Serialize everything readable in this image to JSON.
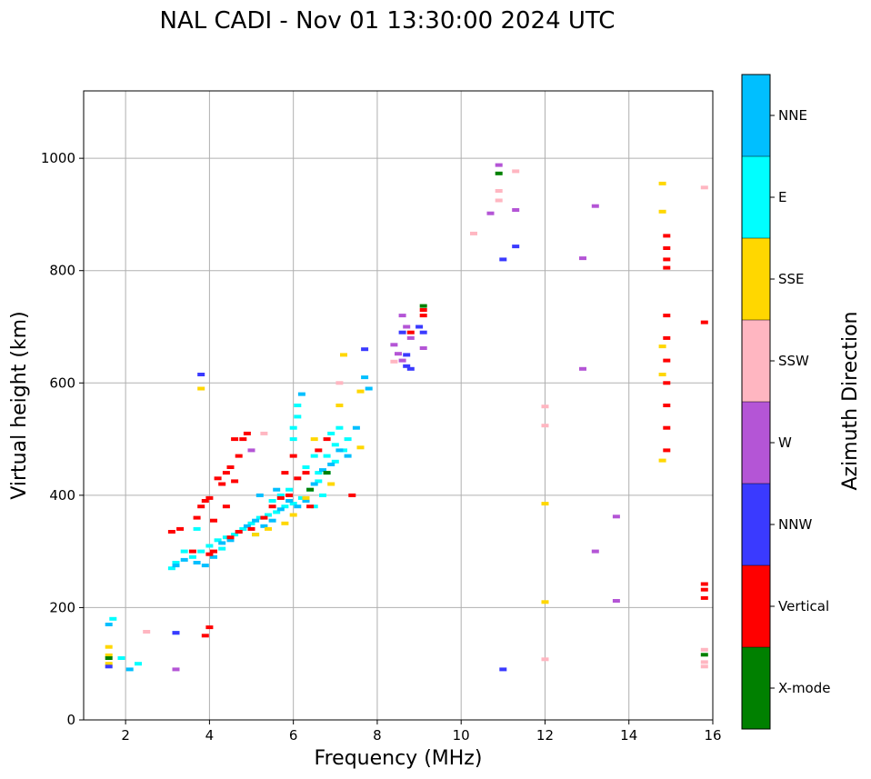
{
  "chart_data": {
    "type": "scatter",
    "title": "NAL CADI - Nov 01 13:30:00 2024 UTC",
    "xlabel": "Frequency (MHz)",
    "ylabel": "Virtual height (km)",
    "xlim": [
      1,
      16
    ],
    "ylim": [
      0,
      1120
    ],
    "xticks": [
      2,
      4,
      6,
      8,
      10,
      12,
      14,
      16
    ],
    "yticks": [
      0,
      200,
      400,
      600,
      800,
      1000
    ],
    "grid": true,
    "colorbar": {
      "title": "Azimuth Direction",
      "categories": [
        {
          "name": "X-mode",
          "color": "#008000"
        },
        {
          "name": "Vertical",
          "color": "#ff0000"
        },
        {
          "name": "NNW",
          "color": "#3a3aff"
        },
        {
          "name": "W",
          "color": "#b455d6"
        },
        {
          "name": "SSW",
          "color": "#ffb6c1"
        },
        {
          "name": "SSE",
          "color": "#ffd700"
        },
        {
          "name": "E",
          "color": "#00ffff"
        },
        {
          "name": "NNE",
          "color": "#00bfff"
        }
      ]
    },
    "series": [
      {
        "name": "E",
        "points": [
          [
            3.1,
            270
          ],
          [
            3.2,
            280
          ],
          [
            3.4,
            300
          ],
          [
            3.6,
            290
          ],
          [
            3.8,
            300
          ],
          [
            4.0,
            310
          ],
          [
            4.2,
            320
          ],
          [
            4.4,
            325
          ],
          [
            4.6,
            330
          ],
          [
            4.8,
            340
          ],
          [
            5.0,
            350
          ],
          [
            5.2,
            360
          ],
          [
            5.4,
            365
          ],
          [
            5.6,
            370
          ],
          [
            5.8,
            380
          ],
          [
            6.0,
            385
          ],
          [
            6.2,
            395
          ],
          [
            6.4,
            410
          ],
          [
            6.6,
            425
          ],
          [
            6.8,
            440
          ],
          [
            7.0,
            460
          ],
          [
            7.2,
            480
          ],
          [
            6.0,
            500
          ],
          [
            6.0,
            520
          ],
          [
            6.1,
            540
          ],
          [
            6.1,
            560
          ],
          [
            6.6,
            440
          ],
          [
            6.8,
            470
          ],
          [
            7.0,
            490
          ],
          [
            5.5,
            390
          ],
          [
            5.7,
            400
          ],
          [
            6.3,
            450
          ],
          [
            6.5,
            470
          ],
          [
            6.9,
            510
          ],
          [
            7.1,
            520
          ],
          [
            1.7,
            180
          ],
          [
            1.9,
            110
          ],
          [
            2.3,
            100
          ],
          [
            3.7,
            340
          ],
          [
            4.3,
            305
          ],
          [
            5.1,
            330
          ],
          [
            5.9,
            410
          ],
          [
            6.5,
            380
          ],
          [
            6.7,
            400
          ],
          [
            7.3,
            500
          ]
        ]
      },
      {
        "name": "NNE",
        "points": [
          [
            3.2,
            275
          ],
          [
            3.4,
            285
          ],
          [
            3.7,
            280
          ],
          [
            3.9,
            275
          ],
          [
            4.1,
            290
          ],
          [
            4.3,
            315
          ],
          [
            4.5,
            320
          ],
          [
            4.7,
            335
          ],
          [
            4.9,
            345
          ],
          [
            5.1,
            355
          ],
          [
            5.3,
            345
          ],
          [
            5.5,
            355
          ],
          [
            5.7,
            375
          ],
          [
            5.9,
            390
          ],
          [
            6.1,
            380
          ],
          [
            6.3,
            390
          ],
          [
            6.5,
            420
          ],
          [
            6.7,
            445
          ],
          [
            6.9,
            455
          ],
          [
            7.1,
            480
          ],
          [
            7.3,
            470
          ],
          [
            7.7,
            610
          ],
          [
            7.8,
            590
          ],
          [
            7.5,
            520
          ],
          [
            6.2,
            580
          ],
          [
            5.2,
            400
          ],
          [
            5.6,
            410
          ],
          [
            2.1,
            90
          ],
          [
            1.6,
            170
          ],
          [
            3.2,
            155
          ]
        ]
      },
      {
        "name": "SSE",
        "points": [
          [
            1.6,
            100
          ],
          [
            1.6,
            115
          ],
          [
            1.6,
            130
          ],
          [
            3.8,
            590
          ],
          [
            5.1,
            330
          ],
          [
            5.4,
            340
          ],
          [
            6.0,
            365
          ],
          [
            6.5,
            500
          ],
          [
            6.9,
            420
          ],
          [
            7.1,
            560
          ],
          [
            7.2,
            650
          ],
          [
            7.6,
            485
          ],
          [
            7.6,
            585
          ],
          [
            12.0,
            210
          ],
          [
            12.0,
            385
          ],
          [
            14.8,
            955
          ],
          [
            14.8,
            905
          ],
          [
            14.8,
            665
          ],
          [
            14.8,
            615
          ],
          [
            14.8,
            462
          ],
          [
            6.3,
            395
          ],
          [
            5.8,
            350
          ]
        ]
      },
      {
        "name": "Vertical",
        "points": [
          [
            3.1,
            335
          ],
          [
            3.3,
            340
          ],
          [
            3.6,
            300
          ],
          [
            3.7,
            360
          ],
          [
            3.8,
            380
          ],
          [
            3.9,
            390
          ],
          [
            4.0,
            395
          ],
          [
            4.0,
            295
          ],
          [
            4.1,
            300
          ],
          [
            4.2,
            430
          ],
          [
            4.3,
            420
          ],
          [
            4.4,
            440
          ],
          [
            4.5,
            450
          ],
          [
            4.6,
            425
          ],
          [
            4.7,
            470
          ],
          [
            4.8,
            500
          ],
          [
            4.9,
            510
          ],
          [
            4.5,
            325
          ],
          [
            4.7,
            335
          ],
          [
            5.0,
            340
          ],
          [
            5.3,
            360
          ],
          [
            5.5,
            380
          ],
          [
            5.7,
            395
          ],
          [
            6.0,
            470
          ],
          [
            6.1,
            430
          ],
          [
            6.3,
            440
          ],
          [
            6.6,
            480
          ],
          [
            6.8,
            500
          ],
          [
            6.4,
            380
          ],
          [
            5.9,
            400
          ],
          [
            4.0,
            165
          ],
          [
            3.9,
            150
          ],
          [
            7.4,
            400
          ],
          [
            8.8,
            690
          ],
          [
            9.1,
            730
          ],
          [
            9.1,
            720
          ],
          [
            4.1,
            355
          ],
          [
            4.6,
            500
          ],
          [
            14.9,
            862
          ],
          [
            14.9,
            840
          ],
          [
            14.9,
            820
          ],
          [
            14.9,
            805
          ],
          [
            14.9,
            720
          ],
          [
            14.9,
            680
          ],
          [
            14.9,
            640
          ],
          [
            14.9,
            600
          ],
          [
            14.9,
            560
          ],
          [
            14.9,
            520
          ],
          [
            14.9,
            480
          ],
          [
            15.8,
            708
          ],
          [
            15.8,
            242
          ],
          [
            15.8,
            232
          ],
          [
            15.8,
            217
          ],
          [
            4.4,
            380
          ],
          [
            5.8,
            440
          ]
        ]
      },
      {
        "name": "NNW",
        "points": [
          [
            3.8,
            615
          ],
          [
            8.6,
            690
          ],
          [
            8.7,
            650
          ],
          [
            8.8,
            625
          ],
          [
            9.0,
            700
          ],
          [
            9.1,
            690
          ],
          [
            11.0,
            820
          ],
          [
            11.3,
            843
          ],
          [
            11.0,
            90
          ],
          [
            3.2,
            155
          ],
          [
            1.6,
            95
          ],
          [
            7.7,
            660
          ],
          [
            8.7,
            630
          ]
        ]
      },
      {
        "name": "W",
        "points": [
          [
            3.2,
            90
          ],
          [
            8.6,
            720
          ],
          [
            8.7,
            700
          ],
          [
            8.8,
            680
          ],
          [
            8.6,
            640
          ],
          [
            8.4,
            668
          ],
          [
            8.5,
            652
          ],
          [
            9.1,
            662
          ],
          [
            10.7,
            902
          ],
          [
            10.9,
            988
          ],
          [
            11.3,
            908
          ],
          [
            12.9,
            822
          ],
          [
            13.2,
            915
          ],
          [
            12.9,
            625
          ],
          [
            13.7,
            362
          ],
          [
            13.2,
            300
          ],
          [
            13.7,
            212
          ],
          [
            5.0,
            480
          ]
        ]
      },
      {
        "name": "SSW",
        "points": [
          [
            2.5,
            157
          ],
          [
            8.4,
            638
          ],
          [
            10.3,
            866
          ],
          [
            10.9,
            925
          ],
          [
            10.9,
            942
          ],
          [
            11.3,
            977
          ],
          [
            12.0,
            558
          ],
          [
            12.0,
            524
          ],
          [
            12.0,
            108
          ],
          [
            15.8,
            948
          ],
          [
            15.8,
            125
          ],
          [
            15.8,
            103
          ],
          [
            15.8,
            95
          ],
          [
            5.3,
            510
          ],
          [
            7.1,
            600
          ]
        ]
      },
      {
        "name": "X-mode",
        "points": [
          [
            1.6,
            110
          ],
          [
            9.1,
            737
          ],
          [
            10.9,
            973
          ],
          [
            15.8,
            116
          ],
          [
            6.4,
            410
          ],
          [
            6.8,
            440
          ]
        ]
      }
    ]
  }
}
